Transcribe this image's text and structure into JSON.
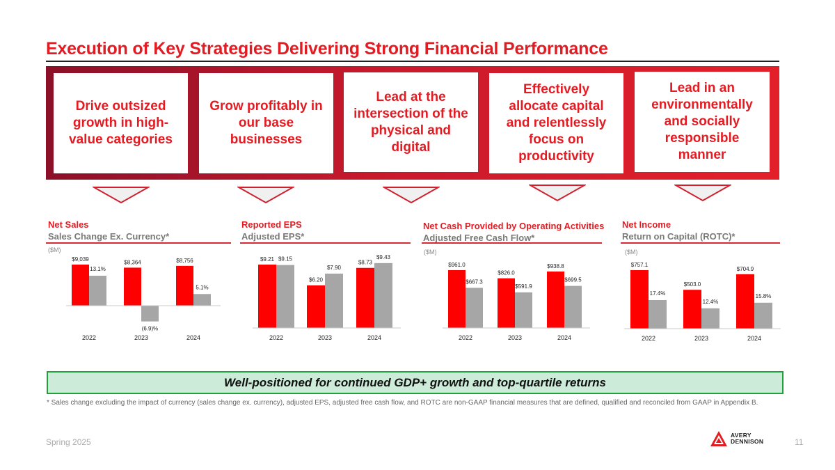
{
  "header": {
    "title": "Execution of Key Strategies Delivering Strong Financial Performance"
  },
  "strategies": [
    {
      "label": "Drive outsized growth in high-value categories"
    },
    {
      "label": "Grow profitably in our base businesses"
    },
    {
      "label": "Lead at the intersection of the physical and digital"
    },
    {
      "label": "Effectively allocate capital and relentlessly focus on productivity"
    },
    {
      "label": "Lead in an environmentally and socially responsible manner"
    }
  ],
  "colors": {
    "accent": "#e31c23",
    "primary_bar": "#ff0000",
    "secondary_bar": "#a6a6a6",
    "banner_bg": "#ccecd9",
    "banner_border": "#1fa23c"
  },
  "charts": {
    "net_sales": {
      "heading": "Net Sales",
      "subheading": "Sales Change Ex. Currency*",
      "unit": "($M)"
    },
    "eps": {
      "heading": "Reported EPS",
      "subheading": "Adjusted EPS*"
    },
    "cash": {
      "heading": "Net Cash Provided by Operating Activities",
      "subheading": "Adjusted Free Cash Flow*",
      "unit": "($M)"
    },
    "income": {
      "heading": "Net Income",
      "subheading": "Return on Capital (ROTC)*",
      "unit": "($M)"
    }
  },
  "chart_data": [
    {
      "id": "net_sales",
      "type": "bar",
      "title": "Net Sales",
      "subtitle": "Sales Change Ex. Currency*",
      "unit": "($M)",
      "categories": [
        "2022",
        "2023",
        "2024"
      ],
      "series": [
        {
          "name": "Net Sales",
          "values": [
            9039,
            8364,
            8756
          ],
          "labels": [
            "$9,039",
            "$8,364",
            "$8,756"
          ]
        },
        {
          "name": "Sales Change Ex. Currency*",
          "values": [
            13.1,
            -6.9,
            5.1
          ],
          "labels": [
            "13.1%",
            "(6.9)%",
            "5.1%"
          ]
        }
      ]
    },
    {
      "id": "eps",
      "type": "bar",
      "title": "Reported EPS",
      "subtitle": "Adjusted EPS*",
      "categories": [
        "2022",
        "2023",
        "2024"
      ],
      "series": [
        {
          "name": "Reported EPS",
          "values": [
            9.21,
            6.2,
            8.73
          ],
          "labels": [
            "$9.21",
            "$6.20",
            "$8.73"
          ]
        },
        {
          "name": "Adjusted EPS*",
          "values": [
            9.15,
            7.9,
            9.43
          ],
          "labels": [
            "$9.15",
            "$7.90",
            "$9.43"
          ]
        }
      ]
    },
    {
      "id": "cash",
      "type": "bar",
      "title": "Net Cash Provided by Operating Activities",
      "subtitle": "Adjusted Free Cash Flow*",
      "unit": "($M)",
      "categories": [
        "2022",
        "2023",
        "2024"
      ],
      "series": [
        {
          "name": "Net Cash Provided by Operating Activities",
          "values": [
            961.0,
            826.0,
            938.8
          ],
          "labels": [
            "$961.0",
            "$826.0",
            "$938.8"
          ]
        },
        {
          "name": "Adjusted Free Cash Flow*",
          "values": [
            667.3,
            591.9,
            699.5
          ],
          "labels": [
            "$667.3",
            "$591.9",
            "$699.5"
          ]
        }
      ]
    },
    {
      "id": "income",
      "type": "bar",
      "title": "Net Income",
      "subtitle": "Return on Capital (ROTC)*",
      "unit": "($M)",
      "categories": [
        "2022",
        "2023",
        "2024"
      ],
      "series": [
        {
          "name": "Net Income",
          "values": [
            757.1,
            503.0,
            704.9
          ],
          "labels": [
            "$757.1",
            "$503.0",
            "$704.9"
          ]
        },
        {
          "name": "Return on Capital (ROTC)*",
          "values": [
            17.4,
            12.4,
            15.8
          ],
          "labels": [
            "17.4%",
            "12.4%",
            "15.8%"
          ]
        }
      ]
    }
  ],
  "banner": {
    "text": "Well-positioned for continued GDP+ growth and top-quartile returns"
  },
  "footnote": {
    "text": "*  Sales change excluding the impact of currency (sales change ex. currency), adjusted EPS, adjusted free cash flow, and ROTC are non-GAAP financial measures that are defined, qualified and reconciled from GAAP in Appendix B."
  },
  "footer": {
    "season": "Spring 2025",
    "page_number": "11",
    "logo_line1": "AVERY",
    "logo_line2": "DENNISON"
  }
}
